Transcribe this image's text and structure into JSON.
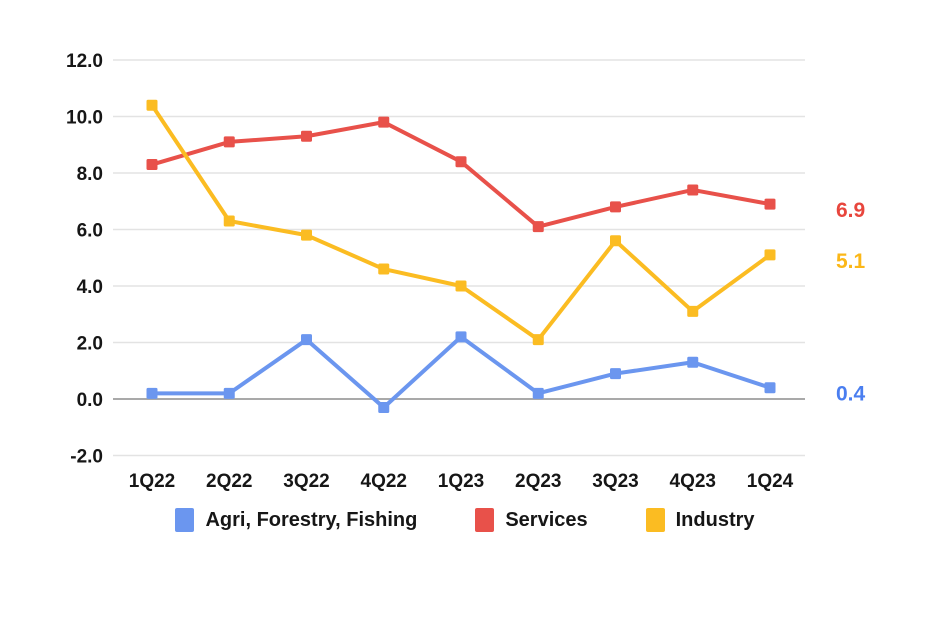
{
  "chart_data": {
    "type": "line",
    "title": "",
    "xlabel": "",
    "ylabel": "",
    "categories": [
      "1Q22",
      "2Q22",
      "3Q22",
      "4Q22",
      "1Q23",
      "2Q23",
      "3Q23",
      "4Q23",
      "1Q24"
    ],
    "series": [
      {
        "name": "Agri, Forestry, Fishing",
        "color": "#6b96ef",
        "label_color": "#4a7ef0",
        "values": [
          0.2,
          0.2,
          2.1,
          -0.3,
          2.2,
          0.2,
          0.9,
          1.3,
          0.4
        ],
        "end_label": "0.4"
      },
      {
        "name": "Services",
        "color": "#e8514a",
        "label_color": "#e8463d",
        "values": [
          8.3,
          9.1,
          9.3,
          9.8,
          8.4,
          6.1,
          6.8,
          7.4,
          6.9
        ],
        "end_label": "6.9"
      },
      {
        "name": "Industry",
        "color": "#fbbc22",
        "label_color": "#fbb718",
        "values": [
          10.4,
          6.3,
          5.8,
          4.6,
          4.0,
          2.1,
          5.6,
          3.1,
          5.1
        ],
        "end_label": "5.1"
      }
    ],
    "ylim": [
      -2.0,
      12.0
    ],
    "ytick_step": 2.0,
    "yticks": [
      "12.0",
      "10.0",
      "8.0",
      "6.0",
      "4.0",
      "2.0",
      "0.0",
      "-2.0"
    ],
    "grid": true,
    "zero_line": true,
    "legend_position": "bottom"
  },
  "colors": {
    "background": "#ffffff",
    "gridline": "#e3e3e3",
    "zero_line": "#a9a9a9",
    "text": "#161616"
  }
}
